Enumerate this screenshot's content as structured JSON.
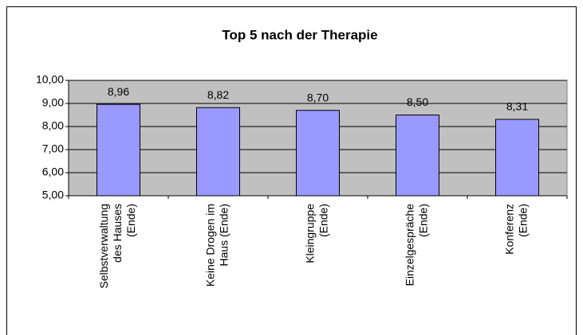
{
  "chart_data": {
    "type": "bar",
    "title": "Top 5 nach der Therapie",
    "categories": [
      [
        "Selbstverwaltung",
        "des Hauses",
        "(Ende)"
      ],
      [
        "Keine Drogen im",
        "Haus (Ende)"
      ],
      [
        "Kleingruppe",
        "(Ende)"
      ],
      [
        "Einzelgespräche",
        "(Ende)"
      ],
      [
        "Konferenz",
        "(Ende)"
      ]
    ],
    "values": [
      8.96,
      8.82,
      8.7,
      8.5,
      8.31
    ],
    "value_labels": [
      "8,96",
      "8,82",
      "8,70",
      "8,50",
      "8,31"
    ],
    "color": "#9999ff",
    "ylim": [
      5,
      10
    ],
    "yticks": [
      {
        "value": 5,
        "label": "5,00"
      },
      {
        "value": 6,
        "label": "6,00"
      },
      {
        "value": 7,
        "label": "7,00"
      },
      {
        "value": 8,
        "label": "8,00"
      },
      {
        "value": 9,
        "label": "9,00"
      },
      {
        "value": 10,
        "label": "10,00"
      }
    ],
    "grid": true
  }
}
